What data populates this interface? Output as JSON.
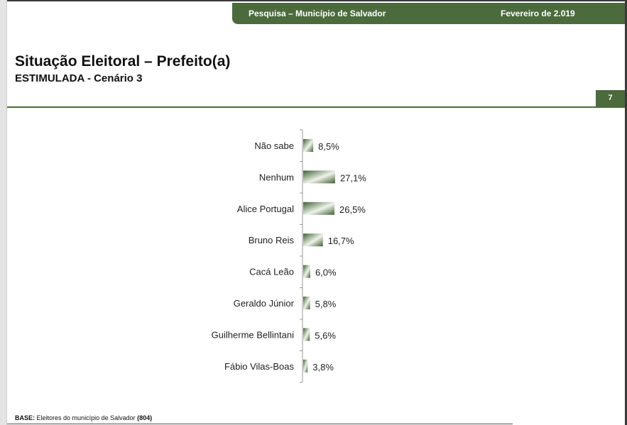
{
  "header": {
    "left_text": "Pesquisa – Município de Salvador",
    "right_text": "Fevereiro de 2.019"
  },
  "title": "Situação Eleitoral – Prefeito(a)",
  "subtitle": "ESTIMULADA - Cenário 3",
  "page_number": "7",
  "footer": {
    "base_label": "BASE:",
    "base_text": "Eleitores do município de Salvador",
    "base_count": "(804)"
  },
  "colors": {
    "brand_green": "#4b6b3d",
    "bar_dark": "#3f5e33",
    "bar_light": "#eef3ea"
  },
  "chart_data": {
    "type": "bar",
    "orientation": "horizontal",
    "categories": [
      "Não sabe",
      "Nenhum",
      "Alice Portugal",
      "Bruno Reis",
      "Cacá Leão",
      "Geraldo Júnior",
      "Guilherme Bellintani",
      "Fábio Vilas-Boas"
    ],
    "values": [
      8.5,
      27.1,
      26.5,
      16.7,
      6.0,
      5.8,
      5.6,
      3.8
    ],
    "value_labels": [
      "8,5%",
      "27,1%",
      "26,5%",
      "16,7%",
      "6,0%",
      "5,8%",
      "5,6%",
      "3,8%"
    ],
    "unit": "%",
    "title": "",
    "xlabel": "",
    "ylabel": "",
    "grid": false,
    "legend": "none"
  }
}
